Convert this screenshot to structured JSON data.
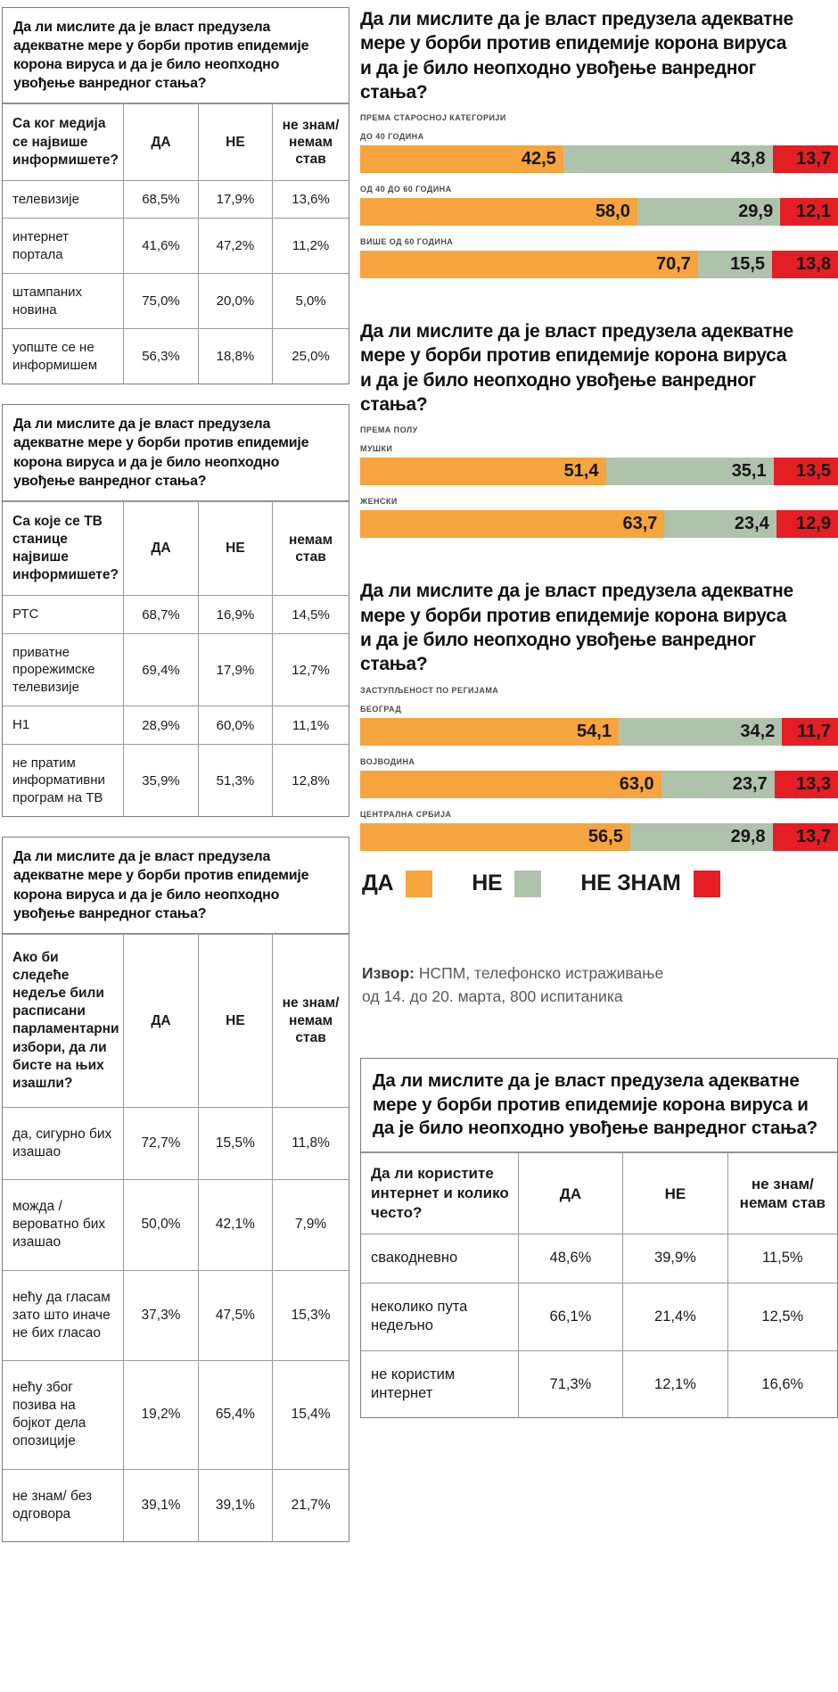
{
  "question_title": "Да ли мислите да је власт предузела адекватне мере у борби против епидемије корона вируса и да је било неопходно увођење ванредног стања?",
  "tables": [
    {
      "title": "Да ли мислите да је власт предузела адекватне мере у борби против епидемије корона вируса и да је било неопходно увођење ванредног стања?",
      "question": "Са ког медија се највише информишете?",
      "columns": [
        "ДА",
        "НЕ",
        "не знам/ немам став"
      ],
      "rows": [
        {
          "label": "телевизије",
          "values": [
            "68,5%",
            "17,9%",
            "13,6%"
          ]
        },
        {
          "label": "интернет портала",
          "values": [
            "41,6%",
            "47,2%",
            "11,2%"
          ]
        },
        {
          "label": "штампаних новина",
          "values": [
            "75,0%",
            "20,0%",
            "5,0%"
          ]
        },
        {
          "label": "уопште се не информишем",
          "values": [
            "56,3%",
            "18,8%",
            "25,0%"
          ]
        }
      ]
    },
    {
      "title": "Да ли мислите да је власт предузела адекватне мере у борби против епидемије корона вируса и да је било неопходно увођење ванредног стања?",
      "question": "Са које се ТВ станице највише информишете?",
      "columns": [
        "ДА",
        "НЕ",
        "немам став"
      ],
      "rows": [
        {
          "label": "РТС",
          "values": [
            "68,7%",
            "16,9%",
            "14,5%"
          ]
        },
        {
          "label": "приватне прорежимске телевизије",
          "values": [
            "69,4%",
            "17,9%",
            "12,7%"
          ]
        },
        {
          "label": "Н1",
          "values": [
            "28,9%",
            "60,0%",
            "11,1%"
          ]
        },
        {
          "label": "не пратим информативни програм на ТВ",
          "values": [
            "35,9%",
            "51,3%",
            "12,8%"
          ]
        }
      ]
    },
    {
      "title": "Да ли мислите да је власт предузела адекватне мере у борби против епидемије корона вируса и да је било неопходно увођење ванредног стања?",
      "question": "Ако би следеће недеље били расписани парламентарни избори, да ли бисте на њих изашли?",
      "columns": [
        "ДА",
        "НЕ",
        "не знам/ немам став"
      ],
      "rows": [
        {
          "label": "да, сигурно бих изашао",
          "values": [
            "72,7%",
            "15,5%",
            "11,8%"
          ]
        },
        {
          "label": "можда / вероватно бих изашао",
          "values": [
            "50,0%",
            "42,1%",
            "7,9%"
          ]
        },
        {
          "label": "нећу да гласам зато што иначе не бих гласао",
          "values": [
            "37,3%",
            "47,5%",
            "15,3%"
          ]
        },
        {
          "label": "нећу због позива на бојкот дела опозиције",
          "values": [
            "19,2%",
            "65,4%",
            "15,4%"
          ]
        },
        {
          "label": "не знам/ без одговора",
          "values": [
            "39,1%",
            "39,1%",
            "21,7%"
          ]
        }
      ]
    },
    {
      "title": "Да ли мислите да је власт предузела адекватне мере у борби против епидемије корона вируса и да је било неопходно увођење ванредног стања?",
      "question": "Да ли користите интернет и колико често?",
      "columns": [
        "ДА",
        "НЕ",
        "не знам/ немам став"
      ],
      "rows": [
        {
          "label": "свакодневно",
          "values": [
            "48,6%",
            "39,9%",
            "11,5%"
          ]
        },
        {
          "label": "неколико пута недељно",
          "values": [
            "66,1%",
            "21,4%",
            "12,5%"
          ]
        },
        {
          "label": "не користим интернет",
          "values": [
            "71,3%",
            "12,1%",
            "16,6%"
          ]
        }
      ]
    }
  ],
  "charts": [
    {
      "title": "Да ли мислите да је власт предузела адекватне мере у борби против епидемије корона вируса и да је било неопходно увођење ванредног стања?",
      "subtitle": "ПРЕМА СТАРОСНОЈ КАТЕГОРИЈИ",
      "bars": [
        {
          "label": "ДО 40 ГОДИНА",
          "yes": "42,5",
          "no": "43,8",
          "dk": "13,7"
        },
        {
          "label": "ОД 40 ДО 60 ГОДИНА",
          "yes": "58,0",
          "no": "29,9",
          "dk": "12,1"
        },
        {
          "label": "ВИШЕ ОД 60 ГОДИНА",
          "yes": "70,7",
          "no": "15,5",
          "dk": "13,8"
        }
      ]
    },
    {
      "title": "Да ли мислите да је власт предузела адекватне мере у борби против епидемије корона вируса и да је било неопходно увођење ванредног стања?",
      "subtitle": "ПРЕМА ПОЛУ",
      "bars": [
        {
          "label": "МУШКИ",
          "yes": "51,4",
          "no": "35,1",
          "dk": "13,5"
        },
        {
          "label": "ЖЕНСКИ",
          "yes": "63,7",
          "no": "23,4",
          "dk": "12,9"
        }
      ]
    },
    {
      "title": "Да ли мислите да је власт предузела адекватне мере у борби против епидемије корона вируса и да је било неопходно увођење ванредног стања?",
      "subtitle": "ЗАСТУПЉЕНОСТ ПО РЕГИЈАМА",
      "bars": [
        {
          "label": "БЕОГРАД",
          "yes": "54,1",
          "no": "34,2",
          "dk": "11,7"
        },
        {
          "label": "ВОЈВОДИНА",
          "yes": "63,0",
          "no": "23,7",
          "dk": "13,3"
        },
        {
          "label": "ЦЕНТРАЛНА СРБИЈА",
          "yes": "56,5",
          "no": "29,8",
          "dk": "13,7"
        }
      ]
    }
  ],
  "legend": {
    "items": [
      {
        "label": "ДА",
        "color": "#F6A43D"
      },
      {
        "label": "НЕ",
        "color": "#AFC2AC"
      },
      {
        "label": "НЕ ЗНАМ",
        "color": "#E31E24"
      }
    ]
  },
  "source": {
    "label": "Извор:",
    "text": " НСПМ, телефонско истраживање од 14. до 20. марта, 800 испитаника"
  },
  "colors": {
    "yes": "#F6A43D",
    "no": "#AFC2AC",
    "dk": "#E31E24",
    "bar_value_text": "#161616"
  },
  "chart_data": [
    {
      "type": "bar",
      "subtype": "stacked-horizontal",
      "title": "Да ли мислите да је власт предузела адекватне мере у борби против епидемије корона вируса и да је било неопходно увођење ванредног стања?",
      "subtitle": "ПРЕМА СТАРОСНОЈ КАТЕГОРИЈИ",
      "categories": [
        "ДО 40 ГОДИНА",
        "ОД 40 ДО 60 ГОДИНА",
        "ВИШЕ ОД 60 ГОДИНА"
      ],
      "series": [
        {
          "name": "ДА",
          "values": [
            42.5,
            58.0,
            70.7
          ]
        },
        {
          "name": "НЕ",
          "values": [
            43.8,
            29.9,
            15.5
          ]
        },
        {
          "name": "НЕ ЗНАМ",
          "values": [
            13.7,
            12.1,
            13.8
          ]
        }
      ],
      "unit": "%",
      "xlim": [
        0,
        100
      ],
      "legend_position": "below-last-chart"
    },
    {
      "type": "bar",
      "subtype": "stacked-horizontal",
      "title": "Да ли мислите да је власт предузела адекватне мере у борби против епидемије корона вируса и да је било неопходно увођење ванредног стања?",
      "subtitle": "ПРЕМА ПОЛУ",
      "categories": [
        "МУШКИ",
        "ЖЕНСКИ"
      ],
      "series": [
        {
          "name": "ДА",
          "values": [
            51.4,
            63.7
          ]
        },
        {
          "name": "НЕ",
          "values": [
            35.1,
            23.4
          ]
        },
        {
          "name": "НЕ ЗНАМ",
          "values": [
            13.5,
            12.9
          ]
        }
      ],
      "unit": "%",
      "xlim": [
        0,
        100
      ],
      "legend_position": "below-last-chart"
    },
    {
      "type": "bar",
      "subtype": "stacked-horizontal",
      "title": "Да ли мислите да је власт предузела адекватне мере у борби против епидемије корона вируса и да је било неопходно увођење ванредног стања?",
      "subtitle": "ЗАСТУПЉЕНОСТ ПО РЕГИЈАМА",
      "categories": [
        "БЕОГРАД",
        "ВОЈВОДИНА",
        "ЦЕНТРАЛНА СРБИЈА"
      ],
      "series": [
        {
          "name": "ДА",
          "values": [
            54.1,
            63.0,
            56.5
          ]
        },
        {
          "name": "НЕ",
          "values": [
            34.2,
            23.7,
            29.8
          ]
        },
        {
          "name": "НЕ ЗНАМ",
          "values": [
            11.7,
            13.3,
            13.7
          ]
        }
      ],
      "unit": "%",
      "xlim": [
        0,
        100
      ],
      "legend_position": "below-last-chart"
    },
    {
      "type": "table",
      "title": "Да ли мислите да је власт предузела адекватне мере у борби против епидемије корона вируса и да је било неопходно увођење ванредног стања?",
      "columns": [
        "Са ког медија се највише информишете?",
        "ДА",
        "НЕ",
        "не знам/ немам став"
      ],
      "rows": [
        [
          "телевизије",
          "68,5%",
          "17,9%",
          "13,6%"
        ],
        [
          "интернет портала",
          "41,6%",
          "47,2%",
          "11,2%"
        ],
        [
          "штампаних новина",
          "75,0%",
          "20,0%",
          "5,0%"
        ],
        [
          "уопште се не информишем",
          "56,3%",
          "18,8%",
          "25,0%"
        ]
      ]
    },
    {
      "type": "table",
      "title": "Да ли мислите да је власт предузела адекватне мере у борби против епидемије корона вируса и да је било неопходно увођење ванредног стања?",
      "columns": [
        "Са које се ТВ станице највише информишете?",
        "ДА",
        "НЕ",
        "немам став"
      ],
      "rows": [
        [
          "РТС",
          "68,7%",
          "16,9%",
          "14,5%"
        ],
        [
          "приватне прорежимске телевизије",
          "69,4%",
          "17,9%",
          "12,7%"
        ],
        [
          "Н1",
          "28,9%",
          "60,0%",
          "11,1%"
        ],
        [
          "не пратим информативни програм на ТВ",
          "35,9%",
          "51,3%",
          "12,8%"
        ]
      ]
    },
    {
      "type": "table",
      "title": "Да ли мислите да је власт предузела адекватне мере у борби против епидемије корона вируса и да је било неопходно увођење ванредног стања?",
      "columns": [
        "Ако би следеће недеље били расписани парламентарни избори, да ли бисте на њих изашли?",
        "ДА",
        "НЕ",
        "не знам/ немам став"
      ],
      "rows": [
        [
          "да, сигурно бих изашао",
          "72,7%",
          "15,5%",
          "11,8%"
        ],
        [
          "можда / вероватно бих изашао",
          "50,0%",
          "42,1%",
          "7,9%"
        ],
        [
          "нећу да гласам зато што иначе не бих гласао",
          "37,3%",
          "47,5%",
          "15,3%"
        ],
        [
          "нећу због позива на бојкот дела опозиције",
          "19,2%",
          "65,4%",
          "15,4%"
        ],
        [
          "не знам/ без одговора",
          "39,1%",
          "39,1%",
          "21,7%"
        ]
      ]
    },
    {
      "type": "table",
      "title": "Да ли мислите да је власт предузела адекватне мере у борби против епидемије корона вируса и да је било неопходно увођење ванредног стања?",
      "columns": [
        "Да ли користите интернет и колико често?",
        "ДА",
        "НЕ",
        "не знам/ немам став"
      ],
      "rows": [
        [
          "свакодневно",
          "48,6%",
          "39,9%",
          "11,5%"
        ],
        [
          "неколико пута недељно",
          "66,1%",
          "21,4%",
          "12,5%"
        ],
        [
          "не користим интернет",
          "71,3%",
          "12,1%",
          "16,6%"
        ]
      ]
    }
  ]
}
